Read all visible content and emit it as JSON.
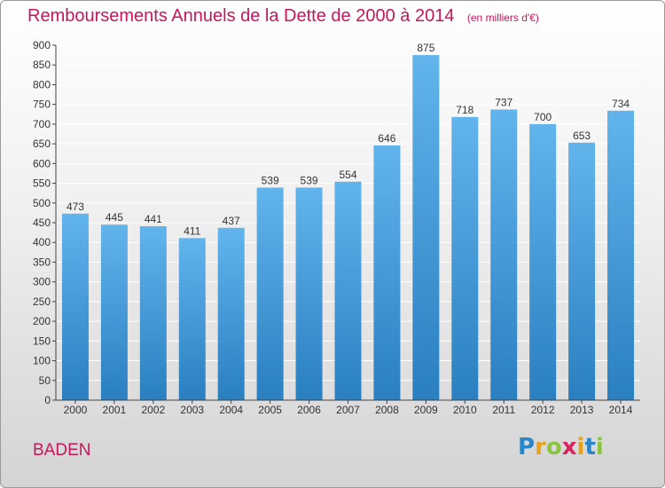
{
  "header": {
    "title": "Remboursements Annuels de la Dette de 2000 à 2014",
    "unit": "(en milliers d'€)"
  },
  "footer": {
    "city": "BADEN",
    "logo_letters": [
      {
        "char": "P",
        "color": "#2a86c8"
      },
      {
        "char": "r",
        "color": "#e8a21a"
      },
      {
        "char": "o",
        "color": "#8bc53f"
      },
      {
        "char": "x",
        "color": "#d6245f"
      },
      {
        "char": "i",
        "color": "#e8a21a"
      },
      {
        "char": "t",
        "color": "#2a86c8"
      },
      {
        "char": "i",
        "color": "#8bc53f"
      }
    ]
  },
  "chart_data": {
    "type": "bar",
    "title": "Remboursements Annuels de la Dette de 2000 à 2014",
    "unit": "(en milliers d'€)",
    "categories": [
      "2000",
      "2001",
      "2002",
      "2003",
      "2004",
      "2005",
      "2006",
      "2007",
      "2008",
      "2009",
      "2010",
      "2011",
      "2012",
      "2013",
      "2014"
    ],
    "values": [
      473,
      445,
      441,
      411,
      437,
      539,
      539,
      554,
      646,
      875,
      718,
      737,
      700,
      653,
      734
    ],
    "ylim": [
      0,
      900
    ],
    "yticks": [
      0,
      50,
      100,
      150,
      200,
      250,
      300,
      350,
      400,
      450,
      500,
      550,
      600,
      650,
      700,
      750,
      800,
      850,
      900
    ],
    "grid": true,
    "bar_color_top": "#62b4ec",
    "bar_color_bottom": "#2a7fc0"
  }
}
